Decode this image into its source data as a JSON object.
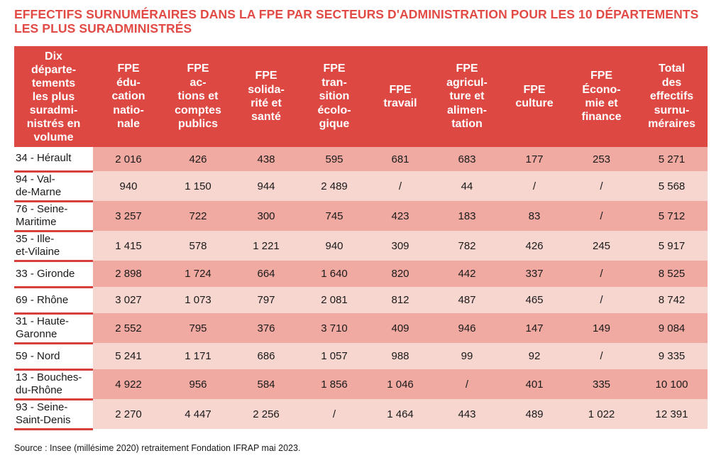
{
  "title": {
    "line1": "EFFECTIFS SURNUMÉRAIRES DANS LA FPE PAR SECTEURS D'ADMINISTRATION POUR LES 10 DÉPARTEMENTS",
    "line2": "LES PLUS SURADMINISTRÉS"
  },
  "header": [
    [
      "Dix",
      "départe-",
      "tements",
      "les plus",
      "suradmi-",
      "nistrés en",
      "volume"
    ],
    [
      "FPE",
      "édu-",
      "cation",
      "natio-",
      "nale"
    ],
    [
      "FPE",
      "ac-",
      "tions et",
      "comptes",
      "publics"
    ],
    [
      "FPE",
      "solida-",
      "rité et",
      "santé"
    ],
    [
      "FPE",
      "tran-",
      "sition",
      "écolo-",
      "gique"
    ],
    [
      "FPE",
      "travail"
    ],
    [
      "FPE",
      "agricul-",
      "ture et",
      "alimen-",
      "tation"
    ],
    [
      "FPE",
      "culture"
    ],
    [
      "FPE",
      "Écono-",
      "mie et",
      "finance"
    ],
    [
      "Total",
      "des",
      "effectifs",
      "surnu-",
      "méraires"
    ]
  ],
  "rows": [
    {
      "dept": [
        "34 - Hérault"
      ],
      "values": [
        "2 016",
        "426",
        "438",
        "595",
        "681",
        "683",
        "177",
        "253",
        "5 271"
      ]
    },
    {
      "dept": [
        "94 - Val-",
        "de-Marne"
      ],
      "values": [
        "940",
        "1 150",
        "944",
        "2 489",
        "/",
        "44",
        "/",
        "/",
        "5 568"
      ]
    },
    {
      "dept": [
        "76 - Seine-",
        "Maritime"
      ],
      "values": [
        "3 257",
        "722",
        "300",
        "745",
        "423",
        "183",
        "83",
        "/",
        "5 712"
      ]
    },
    {
      "dept": [
        "35 - Ille-",
        "et-Vilaine"
      ],
      "values": [
        "1 415",
        "578",
        "1 221",
        "940",
        "309",
        "782",
        "426",
        "245",
        "5 917"
      ]
    },
    {
      "dept": [
        "33 - Gironde"
      ],
      "values": [
        "2 898",
        "1 724",
        "664",
        "1 640",
        "820",
        "442",
        "337",
        "/",
        "8 525"
      ]
    },
    {
      "dept": [
        "69 - Rhône"
      ],
      "values": [
        "3 027",
        "1 073",
        "797",
        "2 081",
        "812",
        "487",
        "465",
        "/",
        "8 742"
      ]
    },
    {
      "dept": [
        "31 - Haute-",
        "Garonne"
      ],
      "values": [
        "2 552",
        "795",
        "376",
        "3 710",
        "409",
        "946",
        "147",
        "149",
        "9 084"
      ]
    },
    {
      "dept": [
        "59 - Nord"
      ],
      "values": [
        "5 241",
        "1 171",
        "686",
        "1 057",
        "988",
        "99",
        "92",
        "/",
        "9 335"
      ]
    },
    {
      "dept": [
        "13 - Bouches-",
        "du-Rhône"
      ],
      "values": [
        "4 922",
        "956",
        "584",
        "1 856",
        "1 046",
        "/",
        "401",
        "335",
        "10 100"
      ]
    },
    {
      "dept": [
        "93 - Seine-",
        "Saint-Denis"
      ],
      "values": [
        "2 270",
        "4 447",
        "2 256",
        "/",
        "1 464",
        "443",
        "489",
        "1 022",
        "12 391"
      ]
    }
  ],
  "source": "Source : Insee (millésime 2020) retraitement Fondation IFRAP mai 2023."
}
